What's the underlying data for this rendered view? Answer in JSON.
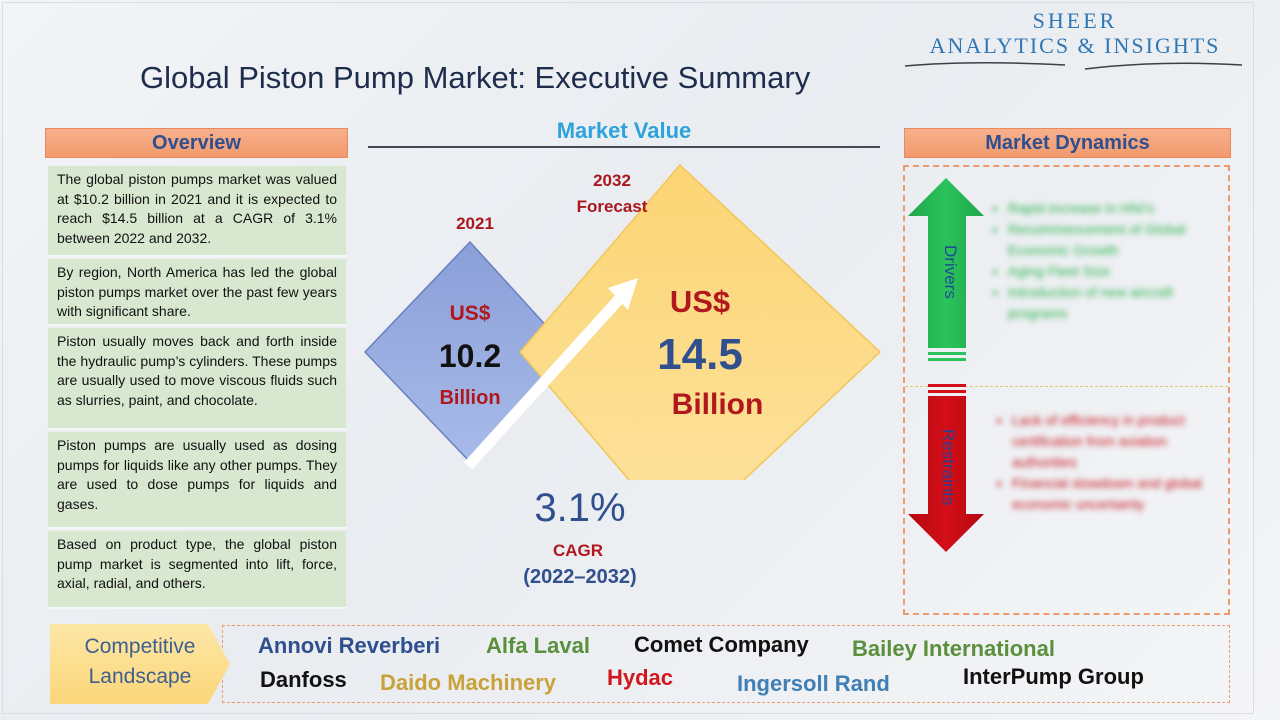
{
  "logo": {
    "line1": "SHEER",
    "line2": "ANALYTICS & INSIGHTS"
  },
  "title": "Global Piston Pump Market: Executive Summary",
  "overview": {
    "heading": "Overview",
    "paragraphs": [
      "The global piston pumps market was valued at $10.2 billion in 2021 and it is expected to reach $14.5 billion at a CAGR of 3.1% between 2022 and 2032.",
      "By region, North America has led the global piston pumps market over the past few years with significant share.",
      "Piston usually moves back and forth inside the hydraulic pump’s cylinders. These pumps are usually used to move viscous fluids such as slurries, paint, and chocolate.",
      "Piston pumps are usually used as dosing pumps for liquids like any other pumps. They are used to dose pumps for liquids and gases.",
      "Based on product type, the global piston pump market is segmented into lift, force, axial, radial, and others."
    ]
  },
  "market_value": {
    "heading": "Market Value",
    "year_2021": "2021",
    "year_2032": "2032",
    "forecast_label": "Forecast",
    "currency": "US$",
    "value_2021": "10.2",
    "value_2032": "14.5",
    "unit": "Billion",
    "cagr_value": "3.1%",
    "cagr_label": "CAGR",
    "cagr_period": "(2022–2032)"
  },
  "market_dynamics": {
    "heading": "Market Dynamics",
    "drivers_label": "Drivers",
    "restraints_label": "Restraints",
    "drivers": [
      "Rapid increase in HNI's",
      "Recommencement of Global Economic Growth",
      "Aging Fleet Size",
      "Introduction of new aircraft programs"
    ],
    "restraints": [
      "Lack of efficiency in product certification from aviation authorities",
      "Financial slowdown and global economic uncertainty"
    ]
  },
  "competitive": {
    "label_line1": "Competitive",
    "label_line2": "Landscape",
    "companies": [
      {
        "name": "Annovi Reverberi",
        "color": "#2f4f8f"
      },
      {
        "name": "Alfa Laval",
        "color": "#5a8f3c"
      },
      {
        "name": "Comet Company",
        "color": "#111111"
      },
      {
        "name": "Bailey International",
        "color": "#5a8f3c"
      },
      {
        "name": "Danfoss",
        "color": "#111111"
      },
      {
        "name": "Daido Machinery",
        "color": "#c8a23a"
      },
      {
        "name": "Hydac",
        "color": "#d0181e"
      },
      {
        "name": "Ingersoll Rand",
        "color": "#3f7fb5"
      },
      {
        "name": "InterPump Group",
        "color": "#111111"
      }
    ]
  }
}
